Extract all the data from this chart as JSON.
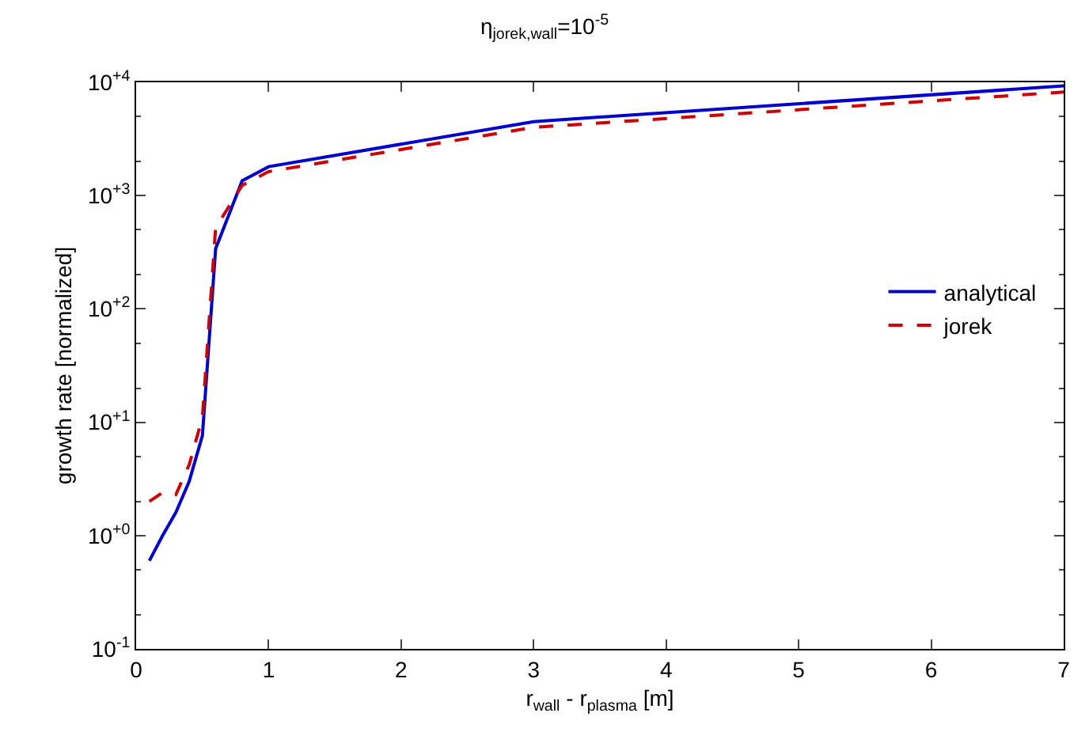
{
  "chart_data": {
    "type": "line",
    "title": "η$_{jorek,wall}$=10$^{-5}$",
    "xlabel": "r$_{wall}$ - r$_{plasma}$ [m]",
    "ylabel": "growth rate [normalized]",
    "x": [
      0.1,
      0.2,
      0.3,
      0.4,
      0.5,
      0.6,
      0.8,
      1,
      3,
      7
    ],
    "series": [
      {
        "name": "analytical",
        "color": "#0000cc",
        "line_style": "solid",
        "values": [
          0.6,
          1.0,
          1.6,
          3.0,
          7.6,
          340,
          1350,
          1800,
          4500,
          9300
        ]
      },
      {
        "name": "jorek",
        "color": "#cc0000",
        "line_style": "dashed",
        "values": [
          2.0,
          2.4,
          2.3,
          4.2,
          11,
          520,
          1230,
          1630,
          4000,
          8200
        ]
      }
    ],
    "log": "y",
    "xlim": [
      0,
      7
    ],
    "xticks": [
      0,
      1,
      2,
      3,
      4,
      5,
      6,
      7
    ],
    "ylim": [
      0.1,
      10000
    ],
    "yticks": [
      {
        "value": 0.1,
        "label": "10$^{-1}$"
      },
      {
        "value": 1,
        "label": "10$^{+0}$"
      },
      {
        "value": 10,
        "label": "10$^{+1}$"
      },
      {
        "value": 100,
        "label": "10$^{+2}$"
      },
      {
        "value": 1000,
        "label": "10$^{+3}$"
      },
      {
        "value": 10000,
        "label": "10$^{+4}$"
      }
    ],
    "legend": "right",
    "marker": "none"
  }
}
